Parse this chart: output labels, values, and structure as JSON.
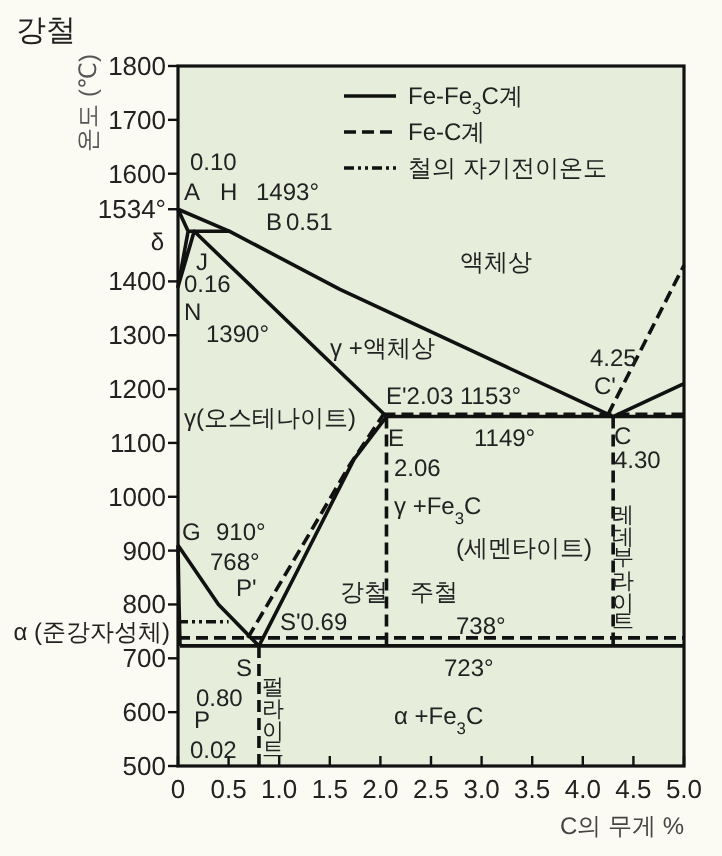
{
  "chart_data": {
    "type": "line",
    "title": "강철",
    "xlabel": "C의 무게 %",
    "ylabel": "온도 (℃)",
    "xlim": [
      0,
      5
    ],
    "ylim": [
      500,
      1800
    ],
    "xticks": [
      0,
      0.5,
      {
        "value": 1,
        "label": "1.0"
      },
      1.5,
      {
        "value": 2,
        "label": "2.0"
      },
      2.5,
      {
        "value": 3,
        "label": "3.0"
      },
      3.5,
      {
        "value": 4,
        "label": "4.0"
      },
      4.5,
      {
        "value": 5,
        "label": "5.0"
      }
    ],
    "yticks": [
      500,
      600,
      700,
      800,
      900,
      1000,
      1100,
      1200,
      1300,
      1400,
      {
        "value": 1534,
        "label": "1534°"
      },
      1600,
      1700,
      1800
    ],
    "grid": false,
    "legend": "top right",
    "series": [
      {
        "name": "Fe-Fe$_{3}$C계",
        "color": "#111111",
        "line_style": "solid",
        "x": [
          0,
          0.51,
          1.6,
          4.3,
          5.0
        ],
        "values": [
          1534,
          1493,
          1385,
          1149,
          1210
        ]
      },
      {
        "color": "#111111",
        "line_style": "solid",
        "x": [
          0,
          0.1,
          0,
          0.16,
          2.06
        ],
        "values": [
          1534,
          1493,
          1390,
          1493,
          1149
        ]
      },
      {
        "color": "#111111",
        "line_style": "solid",
        "x": [
          2.06,
          5.0
        ],
        "values": [
          1149,
          1149
        ]
      },
      {
        "color": "#111111",
        "line_style": "solid",
        "x": [
          0.1,
          0.51
        ],
        "values": [
          1493,
          1493
        ]
      },
      {
        "color": "#111111",
        "line_style": "solid",
        "x": [
          0,
          0.4,
          0.8
        ],
        "values": [
          910,
          800,
          723
        ]
      },
      {
        "color": "#111111",
        "line_style": "solid",
        "x": [
          0,
          0.01,
          0.02
        ],
        "values": [
          910,
          800,
          723
        ]
      },
      {
        "color": "#111111",
        "line_style": "solid",
        "x": [
          0.8,
          1.2,
          1.74,
          2.06
        ],
        "values": [
          723,
          870,
          1070,
          1149
        ]
      },
      {
        "color": "#111111",
        "line_style": "solid",
        "x": [
          0.02,
          5.0
        ],
        "values": [
          723,
          723
        ]
      },
      {
        "name": "Fe-C계",
        "color": "#111111",
        "line_style": "dashed",
        "x": [
          4.25,
          5.0
        ],
        "values": [
          1153,
          1430
        ]
      },
      {
        "color": "#111111",
        "line_style": "dashed",
        "x": [
          2.03,
          5.0
        ],
        "values": [
          1153,
          1153
        ]
      },
      {
        "color": "#111111",
        "line_style": "dashed",
        "x": [
          0.69,
          1.2,
          1.7,
          2.03
        ],
        "values": [
          738,
          900,
          1060,
          1153
        ]
      },
      {
        "color": "#111111",
        "line_style": "dashed",
        "x": [
          0,
          5.0
        ],
        "values": [
          738,
          738
        ]
      },
      {
        "name": "철의 자기전이온도",
        "color": "#111111",
        "line_style": "dotted",
        "x": [
          0,
          0.5
        ],
        "values": [
          768,
          768
        ]
      },
      {
        "color": "#111111",
        "line_style": "dashed",
        "x": [
          0.8,
          0.8
        ],
        "values": [
          723,
          500
        ]
      },
      {
        "color": "#111111",
        "line_style": "dashed",
        "x": [
          2.06,
          2.06
        ],
        "values": [
          1149,
          723
        ]
      },
      {
        "color": "#111111",
        "line_style": "dashed",
        "x": [
          4.3,
          4.3
        ],
        "values": [
          1149,
          723
        ]
      }
    ],
    "annotations": [
      "A",
      "0.10",
      "H",
      "1493°",
      "B",
      "0.51",
      "δ",
      "J",
      "0.16",
      "N",
      "1390°",
      "γ +액체상",
      "액체상",
      "4.25",
      "C'",
      "E'2.03 1153°",
      "γ(오스테나이트)",
      "E",
      "1149°",
      "C",
      "4.30",
      "2.06",
      "γ +Fe$_{3}$C",
      "(세멘타이트)",
      "레데부라이트",
      "강철",
      "주철",
      "G",
      "910°",
      "768°",
      "P'",
      "S'0.69",
      "738°",
      "α (준강자성체)",
      "S",
      "0.80",
      "펄라이트",
      "P",
      "0.02",
      "723°",
      "α +Fe$_{3}$C"
    ]
  }
}
